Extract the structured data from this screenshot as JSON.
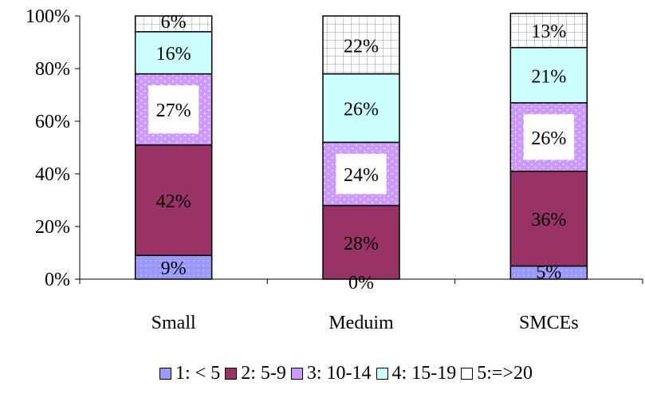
{
  "chart_data": {
    "type": "bar",
    "stacked": true,
    "percent": true,
    "categories": [
      "Small",
      "Meduim",
      "SMCEs"
    ],
    "series": [
      {
        "name": "1: < 5",
        "values": [
          9,
          0,
          5
        ],
        "color": "#9999FF",
        "pattern": "dots"
      },
      {
        "name": "2: 5-9",
        "values": [
          42,
          28,
          36
        ],
        "color": "#993366",
        "pattern": "none"
      },
      {
        "name": "3: 10-14",
        "values": [
          27,
          24,
          26
        ],
        "color": "#CC99FF",
        "pattern": "dashes-dots"
      },
      {
        "name": "4: 15-19",
        "values": [
          16,
          26,
          21
        ],
        "color": "#CCFFFF",
        "pattern": "none"
      },
      {
        "name": "5:=>20",
        "values": [
          6,
          22,
          13
        ],
        "color": "#FFFFFF",
        "pattern": "grid"
      }
    ],
    "data_labels": [
      [
        "9%",
        "42%",
        "27%",
        "16%",
        "6%"
      ],
      [
        "0%",
        "28%",
        "24%",
        "26%",
        "22%"
      ],
      [
        "5%",
        "36%",
        "26%",
        "21%",
        "13%"
      ]
    ],
    "ylim": [
      0,
      100
    ],
    "yticks": [
      "0%",
      "20%",
      "40%",
      "60%",
      "80%",
      "100%"
    ],
    "xlabel": "",
    "ylabel": "",
    "title": "",
    "grid": false,
    "legend": "bottom"
  }
}
